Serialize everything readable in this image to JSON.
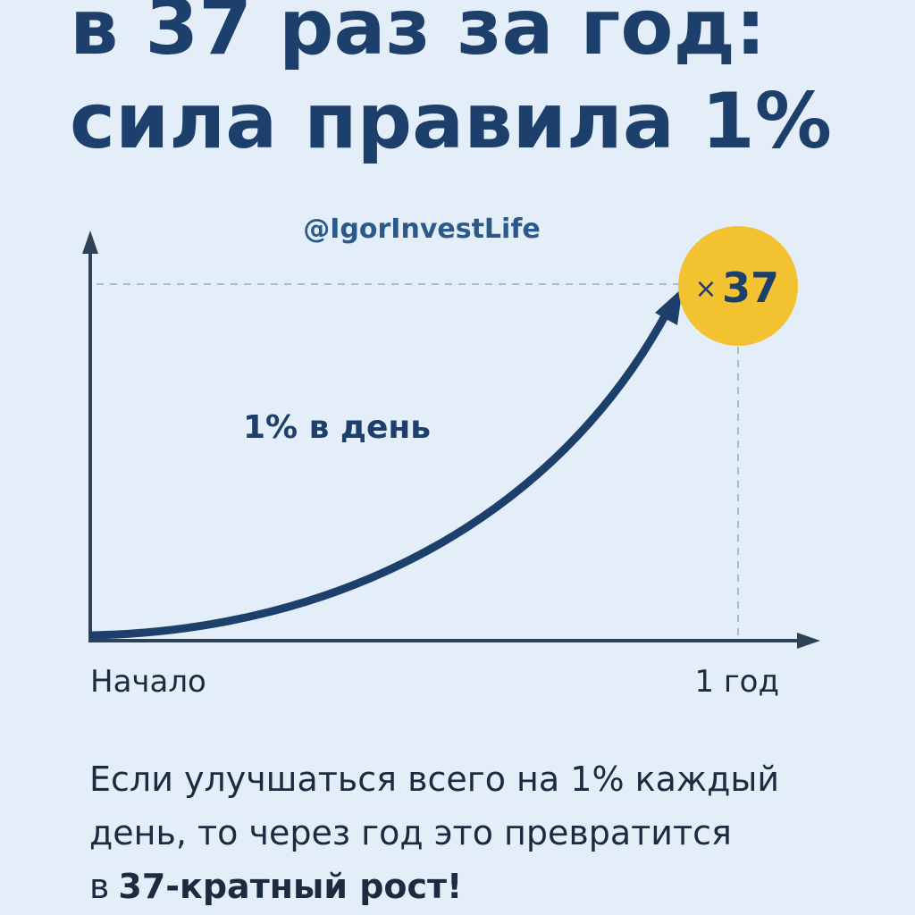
{
  "header": {
    "title_lines": [
      "в 37 раз за год:",
      "сила правила 1%"
    ]
  },
  "handle": "@IgorInvestLife",
  "diagram": {
    "curve_label": "1% в день",
    "badge": {
      "prefix": "×",
      "value": "37"
    },
    "x_start": "Начало",
    "x_end": "1 год"
  },
  "body": {
    "lines": [
      "Если улучшаться всего на 1% каждый",
      "день, то через год это превратится",
      "в"
    ],
    "highlight": "37-кратный рост!"
  }
}
